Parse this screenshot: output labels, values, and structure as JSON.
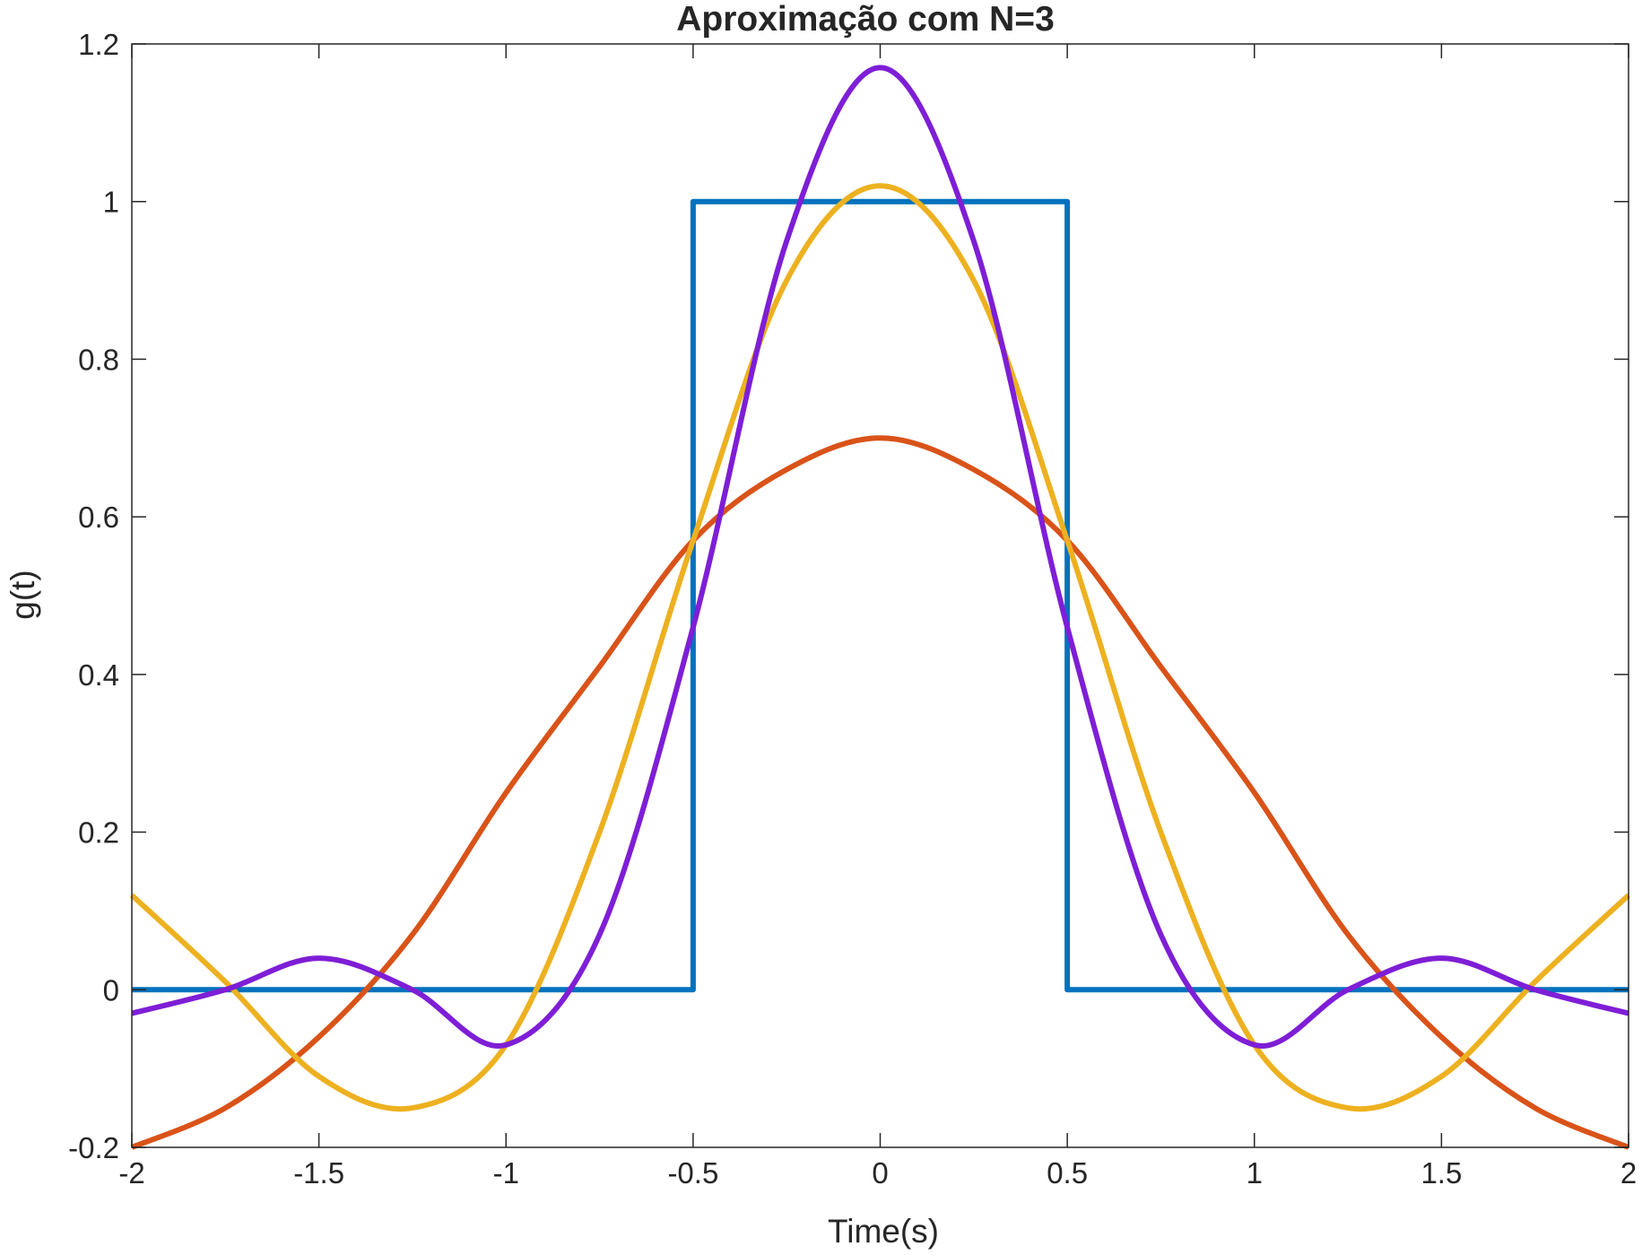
{
  "chart_data": {
    "type": "line",
    "title": "Aproximação com N=3",
    "xlabel": "Time(s)",
    "ylabel": "g(t)",
    "xlim": [
      -2,
      2
    ],
    "ylim": [
      -0.2,
      1.2
    ],
    "xticks": [
      -2,
      -1.5,
      -1,
      -0.5,
      0,
      0.5,
      1,
      1.5,
      2
    ],
    "xtick_labels": [
      "-2",
      "-1.5",
      "-1",
      "-0.5",
      "0",
      "0.5",
      "1",
      "1.5",
      "2"
    ],
    "yticks": [
      -0.2,
      0,
      0.2,
      0.4,
      0.6,
      0.8,
      1,
      1.2
    ],
    "ytick_labels": [
      "-0.2",
      "0",
      "0.2",
      "0.4",
      "0.6",
      "0.8",
      "1",
      "1.2"
    ],
    "grid": false,
    "legend": "none",
    "series": [
      {
        "color": "#0072BD",
        "x": [
          -2,
          -0.5,
          -0.5,
          0.5,
          0.5,
          2
        ],
        "y": [
          0,
          0,
          1,
          1,
          0,
          0
        ]
      },
      {
        "color": "#D95319",
        "x": [
          -2,
          -1.75,
          -1.5,
          -1.25,
          -1,
          -0.75,
          -0.5,
          -0.25,
          0,
          0.25,
          0.5,
          0.75,
          1,
          1.25,
          1.5,
          1.75,
          2
        ],
        "y": [
          -0.2,
          -0.15,
          -0.06,
          0.07,
          0.25,
          0.41,
          0.57,
          0.66,
          0.7,
          0.66,
          0.57,
          0.41,
          0.25,
          0.07,
          -0.06,
          -0.15,
          -0.2
        ]
      },
      {
        "color": "#EDB120",
        "x": [
          -2,
          -1.75,
          -1.5,
          -1.25,
          -1,
          -0.75,
          -0.5,
          -0.25,
          0,
          0.25,
          0.5,
          0.75,
          1,
          1.25,
          1.5,
          1.75,
          2
        ],
        "y": [
          0.12,
          0.01,
          -0.11,
          -0.15,
          -0.07,
          0.2,
          0.57,
          0.9,
          1.02,
          0.9,
          0.57,
          0.2,
          -0.07,
          -0.15,
          -0.11,
          0.01,
          0.12
        ]
      },
      {
        "color": "#7E1ED6",
        "x": [
          -2,
          -1.75,
          -1.5,
          -1.25,
          -1,
          -0.75,
          -0.5,
          -0.25,
          0,
          0.25,
          0.5,
          0.75,
          1,
          1.25,
          1.5,
          1.75,
          2
        ],
        "y": [
          -0.03,
          0.0,
          0.04,
          0.0,
          -0.07,
          0.07,
          0.46,
          0.95,
          1.17,
          0.95,
          0.46,
          0.07,
          -0.07,
          0.0,
          0.04,
          0.0,
          -0.03
        ]
      }
    ]
  }
}
